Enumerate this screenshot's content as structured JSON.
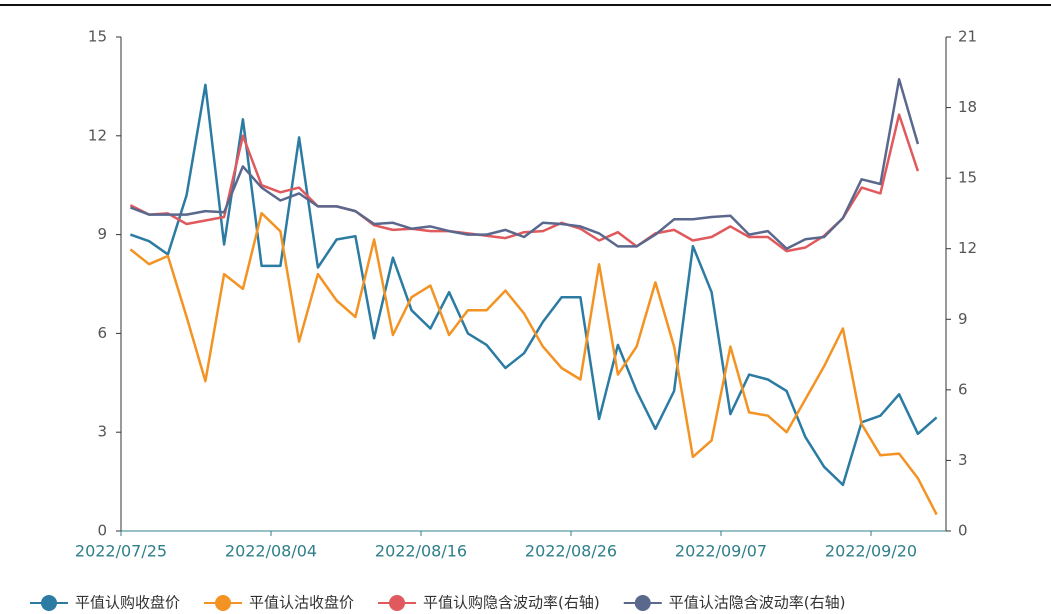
{
  "chart_data": {
    "type": "line",
    "categories": [
      "2022/07/25",
      null,
      null,
      null,
      null,
      null,
      null,
      null,
      "2022/08/04",
      null,
      null,
      null,
      null,
      null,
      null,
      null,
      "2022/08/16",
      null,
      null,
      null,
      null,
      null,
      null,
      null,
      "2022/08/26",
      null,
      null,
      null,
      null,
      null,
      null,
      null,
      "2022/09/07",
      null,
      null,
      null,
      null,
      null,
      null,
      null,
      "2022/09/20",
      null,
      null,
      null
    ],
    "ylim": [
      0,
      15
    ],
    "yticks": [
      0,
      3,
      6,
      9,
      12,
      15
    ],
    "y2lim": [
      0,
      21
    ],
    "y2ticks": [
      0,
      3,
      6,
      9,
      12,
      15,
      18,
      21
    ],
    "series": [
      {
        "name": "平值认购收盘价",
        "color": "#2b7ba3",
        "values": [
          9.0,
          8.8,
          8.4,
          10.2,
          13.55,
          8.7,
          12.5,
          8.05,
          8.05,
          11.95,
          8.0,
          8.85,
          8.95,
          5.85,
          8.3,
          6.7,
          6.15,
          7.25,
          6.0,
          5.65,
          4.95,
          5.4,
          6.35,
          7.1,
          7.1,
          3.4,
          5.65,
          4.25,
          3.1,
          4.25,
          8.65,
          7.25,
          3.55,
          4.75,
          4.6,
          4.25,
          2.85,
          1.95,
          1.4,
          3.3,
          3.5,
          4.15,
          2.95,
          3.45
        ]
      },
      {
        "name": "平值认沽收盘价",
        "color": "#f39323",
        "values": [
          8.55,
          8.1,
          8.35,
          6.5,
          4.55,
          7.8,
          7.35,
          9.65,
          9.1,
          5.75,
          7.8,
          7.0,
          6.5,
          8.85,
          5.95,
          7.1,
          7.45,
          5.95,
          6.7,
          6.7,
          7.3,
          6.6,
          5.6,
          4.95,
          4.6,
          8.1,
          4.75,
          5.6,
          7.55,
          5.6,
          2.25,
          2.75,
          5.6,
          3.6,
          3.5,
          3.0,
          4.0,
          5.0,
          6.15,
          3.25,
          2.3,
          2.35,
          1.6,
          0.5
        ]
      },
      {
        "name": "平值认购隐含波动率(右轴)",
        "color": "#e0595d",
        "axis": "y2",
        "values": [
          13.85,
          13.45,
          13.5,
          13.05,
          13.2,
          13.35,
          16.8,
          14.7,
          14.4,
          14.6,
          13.8,
          13.8,
          13.6,
          13.0,
          12.8,
          12.85,
          12.75,
          12.75,
          12.65,
          12.55,
          12.45,
          12.7,
          12.75,
          13.1,
          12.85,
          12.35,
          12.7,
          12.1,
          12.65,
          12.8,
          12.35,
          12.5,
          12.95,
          12.5,
          12.5,
          11.9,
          12.05,
          12.55,
          13.3,
          14.6,
          14.35,
          17.7,
          15.3,
          null
        ]
      },
      {
        "name": "平值认沽隐含波动率(右轴)",
        "color": "#5a688d",
        "axis": "y2",
        "values": [
          13.75,
          13.45,
          13.45,
          13.45,
          13.6,
          13.55,
          15.5,
          14.6,
          14.05,
          14.35,
          13.8,
          13.8,
          13.6,
          13.05,
          13.1,
          12.85,
          12.95,
          12.75,
          12.6,
          12.6,
          12.8,
          12.5,
          13.1,
          13.05,
          12.95,
          12.65,
          12.1,
          12.1,
          12.6,
          13.25,
          13.25,
          13.35,
          13.4,
          12.6,
          12.75,
          12.0,
          12.4,
          12.5,
          13.3,
          14.95,
          14.75,
          19.2,
          16.45,
          null
        ]
      }
    ]
  }
}
